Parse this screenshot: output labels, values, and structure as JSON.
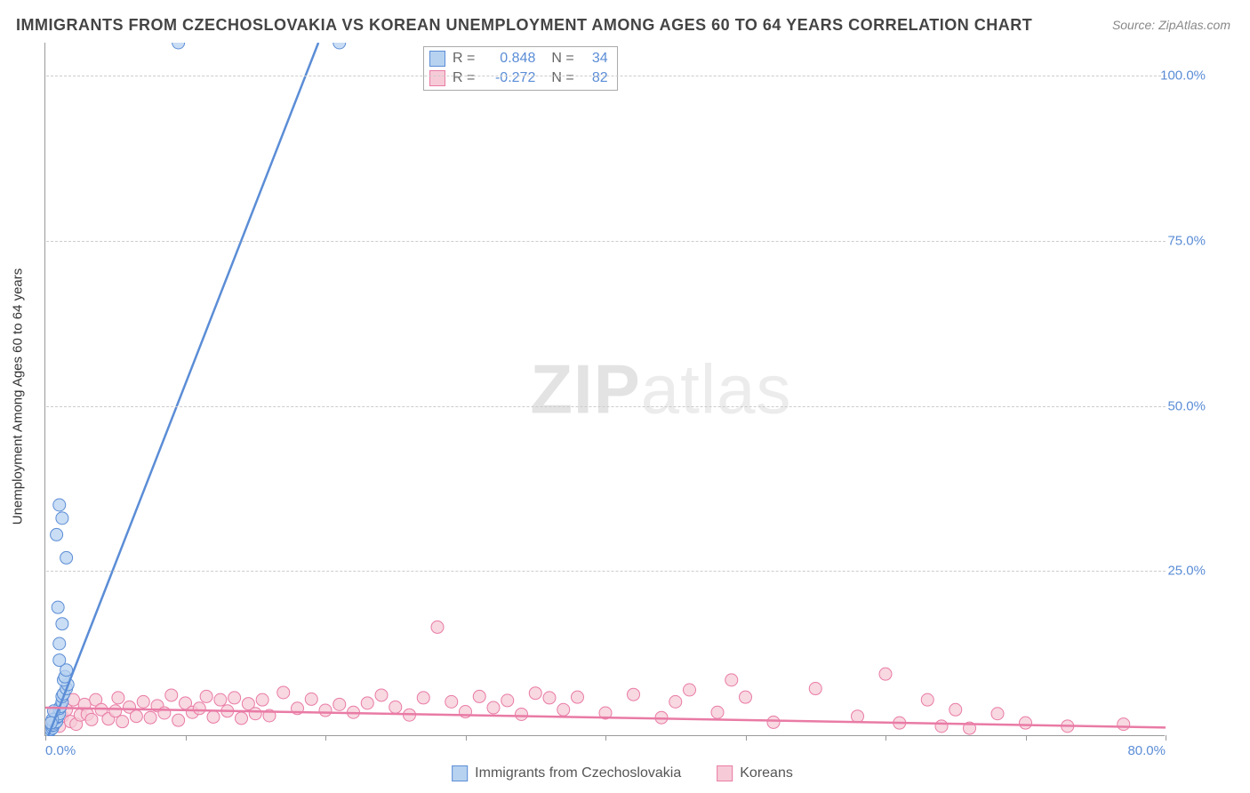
{
  "title": "IMMIGRANTS FROM CZECHOSLOVAKIA VS KOREAN UNEMPLOYMENT AMONG AGES 60 TO 64 YEARS CORRELATION CHART",
  "source": "Source: ZipAtlas.com",
  "ylabel": "Unemployment Among Ages 60 to 64 years",
  "watermark_a": "ZIP",
  "watermark_b": "atlas",
  "xlim": [
    0,
    80
  ],
  "ylim": [
    0,
    105
  ],
  "yticks": [
    {
      "v": 25,
      "label": "25.0%"
    },
    {
      "v": 50,
      "label": "50.0%"
    },
    {
      "v": 75,
      "label": "75.0%"
    },
    {
      "v": 100,
      "label": "100.0%"
    }
  ],
  "xticks": [
    {
      "v": 0,
      "label": "0.0%"
    },
    {
      "v": 10,
      "label": ""
    },
    {
      "v": 20,
      "label": ""
    },
    {
      "v": 30,
      "label": ""
    },
    {
      "v": 40,
      "label": ""
    },
    {
      "v": 50,
      "label": ""
    },
    {
      "v": 60,
      "label": ""
    },
    {
      "v": 70,
      "label": ""
    },
    {
      "v": 80,
      "label": "80.0%"
    }
  ],
  "series": [
    {
      "name": "Immigrants from Czechoslovakia",
      "key": "czech",
      "fill": "#b7d2f0",
      "stroke": "#5b8dd6",
      "R_label": "R =",
      "R": "0.848",
      "N_label": "N =",
      "N": "34",
      "trend": {
        "x1": 0.2,
        "y1": 0,
        "x2": 19.5,
        "y2": 105
      },
      "points": [
        [
          0.2,
          0.5
        ],
        [
          0.3,
          0.8
        ],
        [
          0.4,
          1.0
        ],
        [
          0.5,
          1.2
        ],
        [
          0.5,
          1.6
        ],
        [
          0.6,
          1.7
        ],
        [
          0.7,
          2.0
        ],
        [
          0.8,
          2.2
        ],
        [
          0.8,
          2.8
        ],
        [
          0.9,
          3.0
        ],
        [
          1.0,
          3.4
        ],
        [
          1.0,
          4.2
        ],
        [
          1.1,
          4.5
        ],
        [
          1.2,
          5.2
        ],
        [
          1.2,
          6.0
        ],
        [
          1.3,
          6.4
        ],
        [
          1.5,
          7.2
        ],
        [
          1.6,
          7.8
        ],
        [
          1.3,
          8.5
        ],
        [
          1.4,
          9.0
        ],
        [
          1.5,
          10.0
        ],
        [
          1.0,
          11.5
        ],
        [
          1.0,
          14.0
        ],
        [
          1.2,
          17.0
        ],
        [
          0.9,
          19.5
        ],
        [
          1.5,
          27.0
        ],
        [
          0.8,
          30.5
        ],
        [
          1.2,
          33.0
        ],
        [
          1.0,
          35.0
        ],
        [
          0.5,
          2.5
        ],
        [
          0.6,
          3.8
        ],
        [
          0.4,
          2.0
        ],
        [
          9.5,
          105.0
        ],
        [
          21.0,
          105.0
        ]
      ]
    },
    {
      "name": "Koreans",
      "key": "korean",
      "fill": "#f6cbd7",
      "stroke": "#e97ba5",
      "R_label": "R =",
      "R": "-0.272",
      "N_label": "N =",
      "N": "82",
      "trend": {
        "x1": 0,
        "y1": 4.3,
        "x2": 80,
        "y2": 1.3
      },
      "points": [
        [
          0.5,
          2.0
        ],
        [
          0.7,
          3.5
        ],
        [
          1.0,
          1.5
        ],
        [
          1.2,
          3.0
        ],
        [
          1.5,
          4.0
        ],
        [
          1.8,
          2.2
        ],
        [
          2.0,
          5.5
        ],
        [
          2.2,
          1.8
        ],
        [
          2.5,
          3.2
        ],
        [
          2.8,
          4.8
        ],
        [
          3.0,
          3.3
        ],
        [
          3.3,
          2.5
        ],
        [
          3.6,
          5.5
        ],
        [
          4.0,
          4.0
        ],
        [
          4.5,
          2.6
        ],
        [
          5.0,
          3.8
        ],
        [
          5.2,
          5.8
        ],
        [
          5.5,
          2.2
        ],
        [
          6.0,
          4.4
        ],
        [
          6.5,
          3.0
        ],
        [
          7.0,
          5.2
        ],
        [
          7.5,
          2.8
        ],
        [
          8.0,
          4.6
        ],
        [
          8.5,
          3.5
        ],
        [
          9.0,
          6.2
        ],
        [
          9.5,
          2.4
        ],
        [
          10.0,
          5.0
        ],
        [
          10.5,
          3.6
        ],
        [
          11.0,
          4.2
        ],
        [
          11.5,
          6.0
        ],
        [
          12.0,
          2.9
        ],
        [
          12.5,
          5.5
        ],
        [
          13.0,
          3.8
        ],
        [
          13.5,
          5.8
        ],
        [
          14.0,
          2.7
        ],
        [
          14.5,
          4.9
        ],
        [
          15.0,
          3.4
        ],
        [
          15.5,
          5.5
        ],
        [
          16.0,
          3.1
        ],
        [
          17.0,
          6.6
        ],
        [
          18.0,
          4.2
        ],
        [
          19.0,
          5.6
        ],
        [
          20.0,
          3.9
        ],
        [
          21.0,
          4.8
        ],
        [
          22.0,
          3.6
        ],
        [
          23.0,
          5.0
        ],
        [
          24.0,
          6.2
        ],
        [
          25.0,
          4.4
        ],
        [
          26.0,
          3.2
        ],
        [
          27.0,
          5.8
        ],
        [
          28.0,
          16.5
        ],
        [
          29.0,
          5.2
        ],
        [
          30.0,
          3.7
        ],
        [
          31.0,
          6.0
        ],
        [
          32.0,
          4.3
        ],
        [
          33.0,
          5.4
        ],
        [
          34.0,
          3.3
        ],
        [
          35.0,
          6.5
        ],
        [
          36.0,
          5.8
        ],
        [
          37.0,
          4.0
        ],
        [
          38.0,
          5.9
        ],
        [
          40.0,
          3.5
        ],
        [
          42.0,
          6.3
        ],
        [
          44.0,
          2.8
        ],
        [
          45.0,
          5.2
        ],
        [
          46.0,
          7.0
        ],
        [
          48.0,
          3.6
        ],
        [
          49.0,
          8.5
        ],
        [
          50.0,
          5.9
        ],
        [
          52.0,
          2.1
        ],
        [
          55.0,
          7.2
        ],
        [
          58.0,
          3.0
        ],
        [
          60.0,
          9.4
        ],
        [
          61.0,
          2.0
        ],
        [
          63.0,
          5.5
        ],
        [
          64.0,
          1.5
        ],
        [
          65.0,
          4.0
        ],
        [
          66.0,
          1.2
        ],
        [
          68.0,
          3.4
        ],
        [
          70.0,
          2.0
        ],
        [
          73.0,
          1.5
        ],
        [
          77.0,
          1.8
        ]
      ]
    }
  ],
  "legend_items": [
    {
      "label": "Immigrants from Czechoslovakia",
      "fill": "#b7d2f0",
      "stroke": "#5b8dd6"
    },
    {
      "label": "Koreans",
      "fill": "#f6cbd7",
      "stroke": "#e97ba5"
    }
  ],
  "marker_radius": 7,
  "line_width": 2.5,
  "background": "#ffffff",
  "grid_color": "#cccccc"
}
